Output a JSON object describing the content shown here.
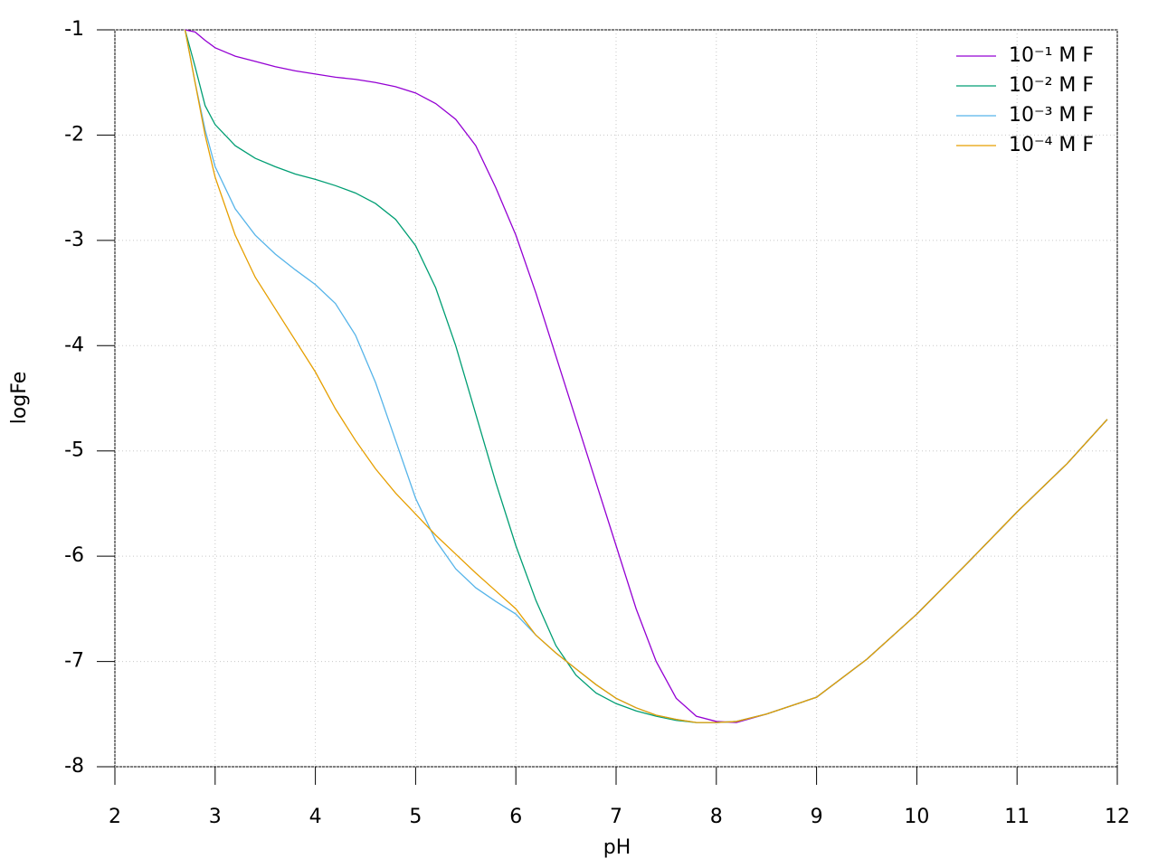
{
  "chart_data": {
    "type": "line",
    "x_label": "pH",
    "y_label": "logFe",
    "x": [
      2.7,
      2.8,
      2.9,
      3.0,
      3.2,
      3.4,
      3.6,
      3.8,
      4.0,
      4.2,
      4.4,
      4.6,
      4.8,
      5.0,
      5.2,
      5.4,
      5.6,
      5.8,
      6.0,
      6.2,
      6.4,
      6.6,
      6.8,
      7.0,
      7.2,
      7.4,
      7.6,
      7.8,
      8.0,
      8.2,
      8.5,
      9.0,
      9.5,
      10,
      10.5,
      11,
      11.5,
      11.9
    ],
    "series": [
      {
        "name": "10⁻¹ M F",
        "color": "#9400d3",
        "values": [
          -1,
          -1.02,
          -1.1,
          -1.17,
          -1.25,
          -1.3,
          -1.35,
          -1.39,
          -1.42,
          -1.45,
          -1.47,
          -1.5,
          -1.54,
          -1.6,
          -1.7,
          -1.85,
          -2.1,
          -2.5,
          -2.95,
          -3.5,
          -4.1,
          -4.7,
          -5.3,
          -5.9,
          -6.5,
          -7.0,
          -7.35,
          -7.52,
          -7.57,
          -7.58,
          -7.5,
          -7.34,
          -6.98,
          -6.55,
          -6.07,
          -5.58,
          -5.12,
          -4.7
        ]
      },
      {
        "name": "10⁻² M F",
        "color": "#009e73",
        "values": [
          -1,
          -1.35,
          -1.72,
          -1.9,
          -2.1,
          -2.22,
          -2.3,
          -2.37,
          -2.42,
          -2.48,
          -2.55,
          -2.65,
          -2.8,
          -3.05,
          -3.45,
          -4.0,
          -4.65,
          -5.3,
          -5.9,
          -6.42,
          -6.85,
          -7.13,
          -7.3,
          -7.4,
          -7.47,
          -7.52,
          -7.56,
          -7.58,
          -7.58,
          -7.57,
          -7.5,
          -7.34,
          -6.98,
          -6.55,
          -6.07,
          -5.58,
          -5.12,
          -4.7
        ]
      },
      {
        "name": "10⁻³ M F",
        "color": "#56b4e9",
        "values": [
          -1,
          -1.5,
          -1.95,
          -2.3,
          -2.7,
          -2.95,
          -3.13,
          -3.28,
          -3.42,
          -3.6,
          -3.9,
          -4.35,
          -4.9,
          -5.45,
          -5.85,
          -6.12,
          -6.3,
          -6.43,
          -6.55,
          -6.75,
          -6.92,
          -7.07,
          -7.22,
          -7.35,
          -7.44,
          -7.51,
          -7.55,
          -7.58,
          -7.58,
          -7.57,
          -7.5,
          -7.34,
          -6.98,
          -6.55,
          -6.07,
          -5.58,
          -5.12,
          -4.7
        ]
      },
      {
        "name": "10⁻⁴ M F",
        "color": "#e69f00",
        "values": [
          -1,
          -1.5,
          -2.0,
          -2.4,
          -2.95,
          -3.35,
          -3.65,
          -3.95,
          -4.25,
          -4.6,
          -4.9,
          -5.17,
          -5.4,
          -5.6,
          -5.8,
          -5.98,
          -6.16,
          -6.33,
          -6.5,
          -6.75,
          -6.92,
          -7.07,
          -7.22,
          -7.35,
          -7.44,
          -7.51,
          -7.55,
          -7.58,
          -7.58,
          -7.57,
          -7.5,
          -7.34,
          -6.98,
          -6.55,
          -6.07,
          -5.58,
          -5.12,
          -4.7
        ]
      }
    ],
    "xlim": [
      2,
      12
    ],
    "xticks": [
      2,
      3,
      4,
      5,
      6,
      7,
      8,
      9,
      10,
      11,
      12
    ],
    "ylim": [
      -8,
      -1
    ],
    "yticks": [
      -8,
      -7,
      -6,
      -5,
      -4,
      -3,
      -2,
      -1
    ],
    "grid": true,
    "legend": "top-right"
  }
}
